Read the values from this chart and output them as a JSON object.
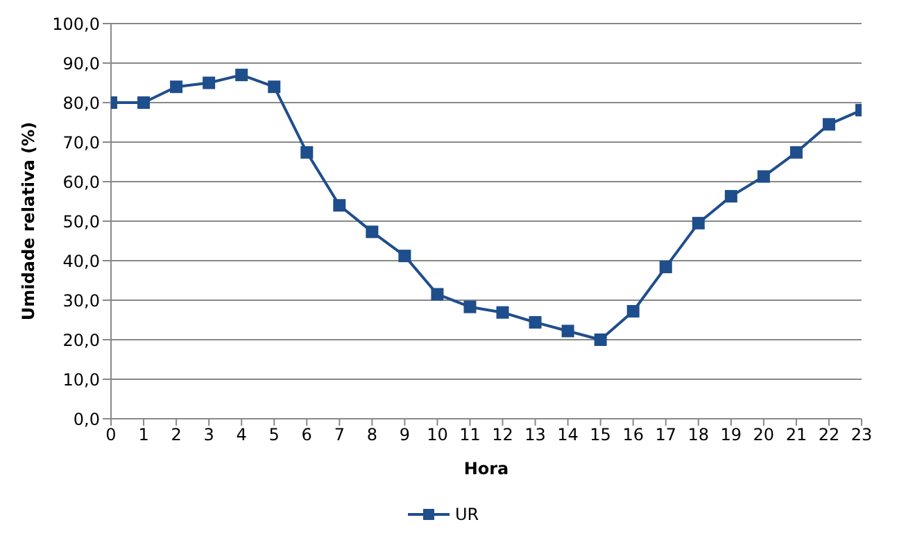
{
  "chart_data": {
    "type": "line",
    "xlabel": "Hora",
    "ylabel": "Umidade relativa (%)",
    "x": [
      0,
      1,
      2,
      3,
      4,
      5,
      6,
      7,
      8,
      9,
      10,
      11,
      12,
      13,
      14,
      15,
      16,
      17,
      18,
      19,
      20,
      21,
      22,
      23
    ],
    "series": [
      {
        "name": "UR",
        "color": "#1f4e8c",
        "values": [
          80,
          80,
          84,
          85,
          87,
          84,
          67.4,
          54,
          47.3,
          41.2,
          31.5,
          28.3,
          26.9,
          24.4,
          22.2,
          20,
          27.2,
          38.4,
          49.5,
          56.3,
          61.3,
          67.4,
          74.5,
          78.1
        ]
      }
    ],
    "xlim": [
      0,
      23
    ],
    "xticks": [
      0,
      1,
      2,
      3,
      4,
      5,
      6,
      7,
      8,
      9,
      10,
      11,
      12,
      13,
      14,
      15,
      16,
      17,
      18,
      19,
      20,
      21,
      22,
      23
    ],
    "ylim": [
      0,
      100
    ],
    "yticks": [
      {
        "value": 0,
        "label": "0,0"
      },
      {
        "value": 10,
        "label": "10,0"
      },
      {
        "value": 20,
        "label": "20,0"
      },
      {
        "value": 30,
        "label": "30,0"
      },
      {
        "value": 40,
        "label": "40,0"
      },
      {
        "value": 50,
        "label": "50,0"
      },
      {
        "value": 60,
        "label": "60,0"
      },
      {
        "value": 70,
        "label": "70,0"
      },
      {
        "value": 80,
        "label": "80,0"
      },
      {
        "value": 90,
        "label": "90,0"
      },
      {
        "value": 100,
        "label": "100,0"
      }
    ],
    "grid": "y",
    "legend": "bottom",
    "marker": "square",
    "line_style": "solid"
  }
}
